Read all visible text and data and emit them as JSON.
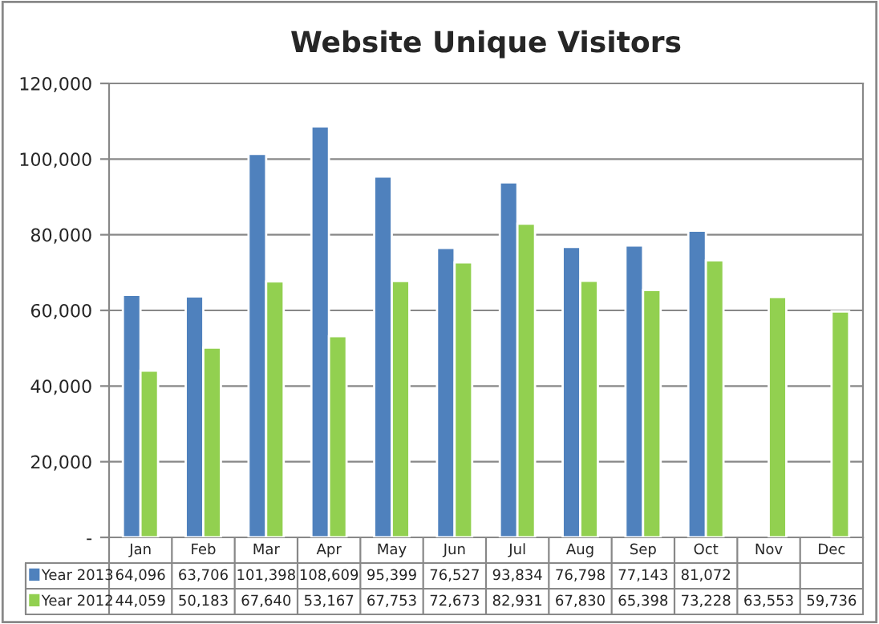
{
  "chart_data": {
    "type": "bar",
    "title": "Website Unique Visitors",
    "categories": [
      "Jan",
      "Feb",
      "Mar",
      "Apr",
      "May",
      "Jun",
      "Jul",
      "Aug",
      "Sep",
      "Oct",
      "Nov",
      "Dec"
    ],
    "series": [
      {
        "name": "Year 2013",
        "color": "#4f81bd",
        "values": [
          64096,
          63706,
          101398,
          108609,
          95399,
          76527,
          93834,
          76798,
          77143,
          81072,
          null,
          null
        ],
        "value_labels": [
          "64,096",
          "63,706",
          "101,398",
          "108,609",
          "95,399",
          "76,527",
          "93,834",
          "76,798",
          "77,143",
          "81,072",
          null,
          null
        ]
      },
      {
        "name": "Year 2012",
        "color": "#92d050",
        "values": [
          44059,
          50183,
          67640,
          53167,
          67753,
          72673,
          82931,
          67830,
          65398,
          73228,
          63553,
          59736
        ],
        "value_labels": [
          "44,059",
          "50,183",
          "67,640",
          "53,167",
          "67,753",
          "72,673",
          "82,931",
          "67,830",
          "65,398",
          "73,228",
          "63,553",
          "59,736"
        ]
      }
    ],
    "ylim": [
      0,
      120000
    ],
    "yticks": [
      {
        "value": 0,
        "label": "-"
      },
      {
        "value": 20000,
        "label": "20,000"
      },
      {
        "value": 40000,
        "label": "40,000"
      },
      {
        "value": 60000,
        "label": "60,000"
      },
      {
        "value": 80000,
        "label": "80,000"
      },
      {
        "value": 100000,
        "label": "100,000"
      },
      {
        "value": 120000,
        "label": "120,000"
      }
    ],
    "grid": "y",
    "legend": "bottom"
  }
}
